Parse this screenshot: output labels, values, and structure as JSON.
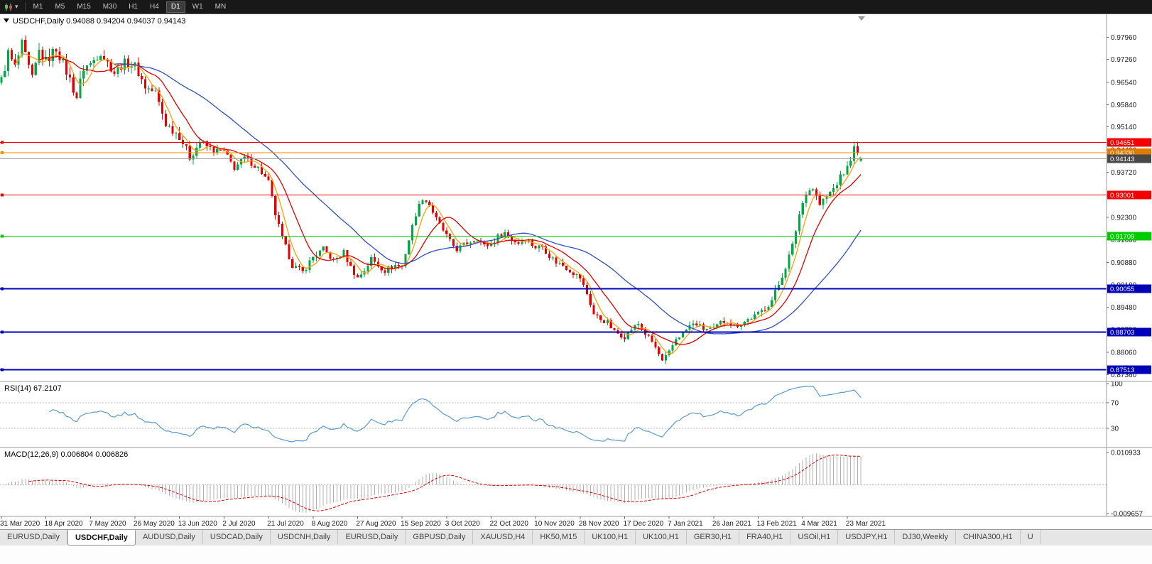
{
  "colors": {
    "bull": "#00a846",
    "bear": "#e60000",
    "ma_fast": "#ffa000",
    "ma_mid": "#e00000",
    "ma_slow": "#3050c8",
    "rsi_line": "#5a9bd4",
    "macd_hist": "#b0b0b0",
    "macd_signal": "#e00000",
    "level_red": "#f40000",
    "level_green": "#00cc00",
    "level_blue": "#0000bb",
    "level_orange": "#ff8c00",
    "current_price_line": "#a0a0a0",
    "current_price_badge": "#484848",
    "separator": "#9b9b9b",
    "axis_text": "#202020"
  },
  "toolbar": {
    "chart_type_icon": "candlestick-chart-icon",
    "timeframes": [
      "M1",
      "M5",
      "M15",
      "M30",
      "H1",
      "H4",
      "D1",
      "W1",
      "MN"
    ],
    "active_timeframe": "D1"
  },
  "chart_header": {
    "symbol": "USDCHF,Daily",
    "open": "0.94088",
    "high": "0.94204",
    "low": "0.94037",
    "close": "0.94143"
  },
  "chart_data": {
    "type": "candlestick",
    "symbol": "USDCHF",
    "timeframe": "Daily",
    "ylim": [
      0.8715,
      0.9868
    ],
    "num_candles": 252,
    "last_ohlc": {
      "open": 0.94088,
      "high": 0.94204,
      "low": 0.94037,
      "close": 0.94143
    },
    "price_path_anchors": [
      [
        0,
        0.966
      ],
      [
        2,
        0.9745
      ],
      [
        4,
        0.97
      ],
      [
        6,
        0.9772
      ],
      [
        9,
        0.9662
      ],
      [
        11,
        0.9752
      ],
      [
        13,
        0.972
      ],
      [
        16,
        0.9762
      ],
      [
        19,
        0.9688
      ],
      [
        22,
        0.9608
      ],
      [
        24,
        0.97
      ],
      [
        26,
        0.9712
      ],
      [
        29,
        0.9748
      ],
      [
        33,
        0.9684
      ],
      [
        36,
        0.9716
      ],
      [
        39,
        0.9706
      ],
      [
        42,
        0.964
      ],
      [
        45,
        0.9622
      ],
      [
        48,
        0.9524
      ],
      [
        52,
        0.9486
      ],
      [
        55,
        0.942
      ],
      [
        58,
        0.9466
      ],
      [
        62,
        0.944
      ],
      [
        65,
        0.9436
      ],
      [
        68,
        0.9386
      ],
      [
        71,
        0.9416
      ],
      [
        75,
        0.9386
      ],
      [
        78,
        0.934
      ],
      [
        80,
        0.924
      ],
      [
        82,
        0.9164
      ],
      [
        85,
        0.908
      ],
      [
        88,
        0.9058
      ],
      [
        91,
        0.9106
      ],
      [
        94,
        0.913
      ],
      [
        97,
        0.9094
      ],
      [
        100,
        0.912
      ],
      [
        102,
        0.9074
      ],
      [
        104,
        0.904
      ],
      [
        106,
        0.9064
      ],
      [
        108,
        0.91
      ],
      [
        110,
        0.908
      ],
      [
        112,
        0.9064
      ],
      [
        115,
        0.908
      ],
      [
        117,
        0.9076
      ],
      [
        119,
        0.916
      ],
      [
        121,
        0.9242
      ],
      [
        123,
        0.9292
      ],
      [
        125,
        0.927
      ],
      [
        127,
        0.9224
      ],
      [
        129,
        0.919
      ],
      [
        131,
        0.9154
      ],
      [
        133,
        0.913
      ],
      [
        136,
        0.915
      ],
      [
        139,
        0.9166
      ],
      [
        141,
        0.914
      ],
      [
        143,
        0.9146
      ],
      [
        145,
        0.917
      ],
      [
        147,
        0.9182
      ],
      [
        149,
        0.916
      ],
      [
        151,
        0.915
      ],
      [
        153,
        0.9164
      ],
      [
        156,
        0.9136
      ],
      [
        158,
        0.914
      ],
      [
        160,
        0.911
      ],
      [
        162,
        0.909
      ],
      [
        164,
        0.908
      ],
      [
        166,
        0.9064
      ],
      [
        169,
        0.904
      ],
      [
        171,
        0.899
      ],
      [
        173,
        0.8926
      ],
      [
        175,
        0.891
      ],
      [
        177,
        0.89
      ],
      [
        179,
        0.887
      ],
      [
        182,
        0.8856
      ],
      [
        184,
        0.888
      ],
      [
        186,
        0.8896
      ],
      [
        188,
        0.8864
      ],
      [
        190,
        0.884
      ],
      [
        192,
        0.88
      ],
      [
        193,
        0.8776
      ],
      [
        195,
        0.8806
      ],
      [
        197,
        0.885
      ],
      [
        199,
        0.8866
      ],
      [
        201,
        0.889
      ],
      [
        203,
        0.8896
      ],
      [
        205,
        0.888
      ],
      [
        208,
        0.888
      ],
      [
        210,
        0.89
      ],
      [
        212,
        0.8906
      ],
      [
        214,
        0.889
      ],
      [
        216,
        0.8896
      ],
      [
        218,
        0.891
      ],
      [
        221,
        0.8926
      ],
      [
        223,
        0.8946
      ],
      [
        225,
        0.897
      ],
      [
        227,
        0.902
      ],
      [
        229,
        0.9076
      ],
      [
        231,
        0.914
      ],
      [
        233,
        0.924
      ],
      [
        235,
        0.931
      ],
      [
        237,
        0.9322
      ],
      [
        239,
        0.927
      ],
      [
        241,
        0.9296
      ],
      [
        243,
        0.932
      ],
      [
        245,
        0.9356
      ],
      [
        247,
        0.9386
      ],
      [
        249,
        0.9446
      ],
      [
        250,
        0.943
      ],
      [
        251,
        0.94143
      ]
    ],
    "volatility_segments": [
      [
        0,
        0.0042
      ],
      [
        26,
        0.0032
      ],
      [
        60,
        0.0024
      ],
      [
        117,
        0.0022
      ],
      [
        169,
        0.002
      ],
      [
        221,
        0.0026
      ]
    ],
    "y_axis_ticks": [
      "0.97960",
      "0.97260",
      "0.96540",
      "0.95840",
      "0.95140",
      "0.94420",
      "0.93720",
      "0.93020",
      "0.92300",
      "0.91600",
      "0.90880",
      "0.90180",
      "0.89480",
      "0.88780",
      "0.88060",
      "0.87360"
    ],
    "x_axis_labels": [
      {
        "i": 0,
        "label": "31 Mar 2020"
      },
      {
        "i": 13,
        "label": "18 Apr 2020"
      },
      {
        "i": 26,
        "label": "7 May 2020"
      },
      {
        "i": 39,
        "label": "26 May 2020"
      },
      {
        "i": 52,
        "label": "13 Jun 2020"
      },
      {
        "i": 65,
        "label": "2 Jul 2020"
      },
      {
        "i": 78,
        "label": "21 Jul 2020"
      },
      {
        "i": 91,
        "label": "8 Aug 2020"
      },
      {
        "i": 104,
        "label": "27 Aug 2020"
      },
      {
        "i": 117,
        "label": "15 Sep 2020"
      },
      {
        "i": 130,
        "label": "3 Oct 2020"
      },
      {
        "i": 143,
        "label": "22 Oct 2020"
      },
      {
        "i": 156,
        "label": "10 Nov 2020"
      },
      {
        "i": 169,
        "label": "28 Nov 2020"
      },
      {
        "i": 182,
        "label": "17 Dec 2020"
      },
      {
        "i": 195,
        "label": "7 Jan 2021"
      },
      {
        "i": 208,
        "label": "26 Jan 2021"
      },
      {
        "i": 221,
        "label": "13 Feb 2021"
      },
      {
        "i": 234,
        "label": "4 Mar 2021"
      },
      {
        "i": 247,
        "label": "23 Mar 2021"
      }
    ],
    "horizontal_levels": [
      {
        "value": 0.94651,
        "label": "0.94651",
        "color_key": "level_red",
        "width": 1
      },
      {
        "value": 0.9433,
        "label": "0.94330",
        "color_key": "level_orange",
        "width": 1
      },
      {
        "value": 0.93001,
        "label": "0.93001",
        "color_key": "level_red",
        "width": 1
      },
      {
        "value": 0.91709,
        "label": "0.91709",
        "color_key": "level_green",
        "width": 1
      },
      {
        "value": 0.90055,
        "label": "0.90055",
        "color_key": "level_blue",
        "width": 2
      },
      {
        "value": 0.88703,
        "label": "0.88703",
        "color_key": "level_blue",
        "width": 2
      },
      {
        "value": 0.87513,
        "label": "0.87513",
        "color_key": "level_blue",
        "width": 2
      },
      {
        "value": 0.94143,
        "label": "0.94143",
        "color_key": "current",
        "width": 1
      }
    ],
    "moving_averages": [
      {
        "name": "ma-fast",
        "period": 5,
        "color_key": "ma_fast"
      },
      {
        "name": "ma-medium",
        "period": 12,
        "color_key": "ma_mid"
      },
      {
        "name": "ma-slow",
        "period": 34,
        "color_key": "ma_slow"
      }
    ],
    "indicators": {
      "rsi": {
        "label": "RSI(14)",
        "value": "67.2107",
        "period": 14,
        "levels": [
          70,
          30
        ],
        "axis_labels": [
          "100",
          "70",
          "30"
        ]
      },
      "macd": {
        "label": "MACD(12,26,9)",
        "macd_value": "0.006804",
        "signal_value": "0.006826",
        "fast": 12,
        "slow": 26,
        "signal": 9,
        "axis_max": 0.010933,
        "axis_min": -0.009657,
        "axis_labels": [
          "0.010933",
          "-0.009657"
        ]
      }
    }
  },
  "tabs": {
    "active_index": 1,
    "items": [
      {
        "label": "EURUSD,Daily"
      },
      {
        "label": "USDCHF,Daily"
      },
      {
        "label": "AUDUSD,Daily"
      },
      {
        "label": "USDCAD,Daily"
      },
      {
        "label": "USDCNH,Daily"
      },
      {
        "label": "EURUSD,Daily"
      },
      {
        "label": "GBPUSD,Daily"
      },
      {
        "label": "XAUUSD,H4"
      },
      {
        "label": "HK50,M15"
      },
      {
        "label": "UK100,H1"
      },
      {
        "label": "UK100,H1"
      },
      {
        "label": "GER30,H1"
      },
      {
        "label": "FRA40,H1"
      },
      {
        "label": "USOil,H1"
      },
      {
        "label": "USDJPY,H1"
      },
      {
        "label": "DJ30,Weekly"
      },
      {
        "label": "CHINA300,H1"
      },
      {
        "label": "U"
      }
    ]
  }
}
